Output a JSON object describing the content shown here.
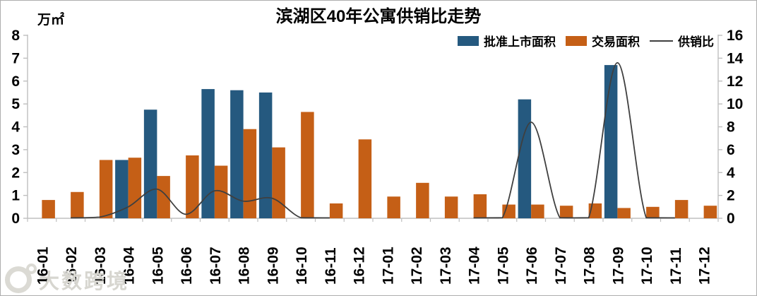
{
  "title": "滨湖区40年公寓供销比走势",
  "unit_label": "万㎡",
  "watermark": "大数跨境",
  "colors": {
    "approved_bar": "#25597f",
    "transaction_bar": "#c55f16",
    "ratio_line": "#3f3f3f",
    "axis": "#bfbfbf",
    "text": "#000000"
  },
  "legend": [
    {
      "key": "approved",
      "label": "批准上市面积",
      "type": "bar",
      "color": "#25597f"
    },
    {
      "key": "transaction",
      "label": "交易面积",
      "type": "bar",
      "color": "#c55f16"
    },
    {
      "key": "ratio",
      "label": "供销比",
      "type": "line",
      "color": "#3f3f3f"
    }
  ],
  "chart_data": {
    "type": "bar+line combo",
    "title": "滨湖区40年公寓供销比走势",
    "ylabel_left": "万㎡",
    "legend_position": "top-right",
    "grid": false,
    "categories": [
      "16-01",
      "16-02",
      "16-03",
      "16-04",
      "16-05",
      "16-06",
      "16-07",
      "16-08",
      "16-09",
      "16-10",
      "16-11",
      "16-12",
      "17-01",
      "17-02",
      "17-03",
      "17-04",
      "17-05",
      "17-06",
      "17-07",
      "17-08",
      "17-09",
      "17-10",
      "17-11",
      "17-12"
    ],
    "left_axis": {
      "min": 0,
      "max": 8,
      "step": 1,
      "tick_labels": [
        "0",
        "1",
        "2",
        "3",
        "4",
        "5",
        "6",
        "7",
        "8"
      ]
    },
    "right_axis": {
      "min": 0,
      "max": 16,
      "step": 2,
      "tick_labels": [
        "0",
        "2",
        "4",
        "6",
        "8",
        "10",
        "12",
        "14",
        "16"
      ]
    },
    "series": [
      {
        "key": "approved",
        "name": "批准上市面积",
        "type": "bar",
        "axis": "left",
        "color": "#25597f",
        "values": [
          0,
          0,
          0,
          2.55,
          4.75,
          0,
          5.65,
          5.6,
          5.5,
          0,
          0,
          0,
          0,
          0,
          0,
          0,
          0,
          5.2,
          0,
          0,
          6.7,
          0,
          0,
          0
        ]
      },
      {
        "key": "transaction",
        "name": "交易面积",
        "type": "bar",
        "axis": "left",
        "color": "#c55f16",
        "values": [
          0.8,
          1.15,
          2.55,
          2.65,
          1.85,
          2.75,
          2.3,
          3.9,
          3.1,
          4.65,
          0.65,
          3.45,
          0.95,
          1.55,
          0.95,
          1.05,
          0.6,
          0.6,
          0.55,
          0.65,
          0.45,
          0.5,
          0.8,
          0.55
        ]
      },
      {
        "key": "ratio",
        "name": "供销比",
        "type": "line",
        "axis": "right",
        "color": "#3f3f3f",
        "values": [
          0,
          0,
          0.1,
          1.0,
          2.55,
          0.35,
          2.4,
          1.5,
          1.75,
          0.05,
          0,
          0,
          0,
          0,
          0,
          0,
          0.05,
          8.4,
          0.05,
          0.05,
          13.6,
          0.05,
          0,
          0
        ]
      }
    ]
  }
}
